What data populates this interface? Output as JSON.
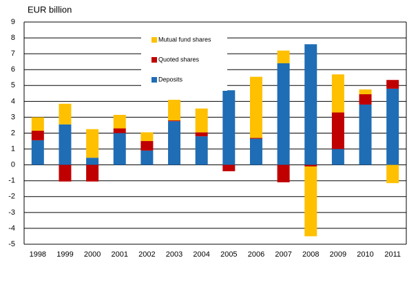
{
  "chart_data": {
    "type": "stacked-bar",
    "title": "EUR billion",
    "categories": [
      "1998",
      "1999",
      "2000",
      "2001",
      "2002",
      "2003",
      "2004",
      "2005",
      "2006",
      "2007",
      "2008",
      "2009",
      "2010",
      "2011"
    ],
    "series": [
      {
        "name": "Deposits",
        "color": "#1f6db5",
        "values": [
          1.55,
          2.55,
          0.45,
          2.0,
          0.9,
          2.75,
          1.8,
          4.7,
          1.65,
          6.4,
          7.6,
          1.0,
          3.8,
          4.8
        ]
      },
      {
        "name": "Quoted shares",
        "color": "#c00000",
        "values": [
          0.6,
          -1.05,
          -1.05,
          0.3,
          0.6,
          0.05,
          0.25,
          -0.4,
          0.05,
          -1.1,
          -0.1,
          2.3,
          0.65,
          0.55
        ]
      },
      {
        "name": "Mutual fund shares",
        "color": "#ffc000",
        "values": [
          0.85,
          1.3,
          1.8,
          0.85,
          0.55,
          1.3,
          1.5,
          0,
          3.85,
          0.8,
          -4.4,
          2.4,
          0.3,
          -1.15
        ]
      }
    ],
    "ylim": [
      -5,
      9
    ],
    "yticks": [
      -5,
      -4,
      -3,
      -2,
      -1,
      0,
      1,
      2,
      3,
      4,
      5,
      6,
      7,
      8,
      9
    ],
    "grid": true
  }
}
